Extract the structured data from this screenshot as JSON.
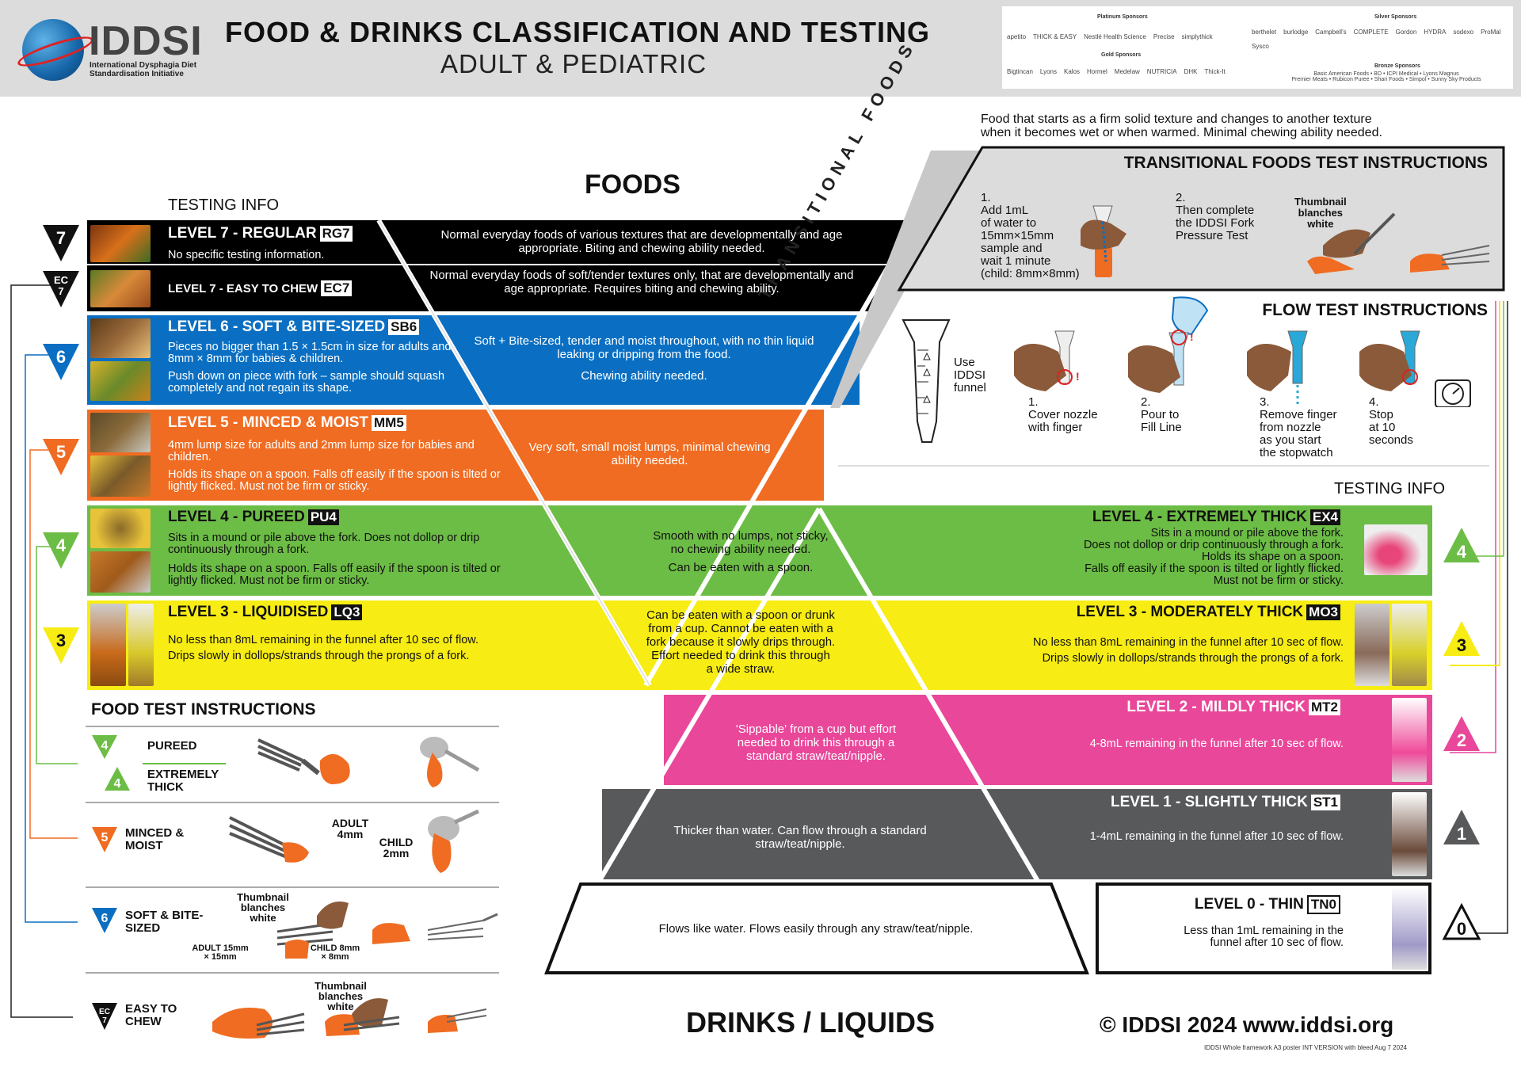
{
  "header": {
    "logo_text": "IDDSI",
    "logo_sub": "International Dysphagia Diet Standardisation Initiative",
    "title": "FOOD & DRINKS CLASSIFICATION AND TESTING",
    "subtitle": "ADULT & PEDIATRIC",
    "sponsors": {
      "platinum_label": "Platinum Sponsors",
      "platinum": [
        "apetito",
        "THICK & EASY",
        "Nestlé Health Science",
        "Precise",
        "simplythick"
      ],
      "gold_label": "Gold Sponsors",
      "gold": [
        "Bigtincan",
        "Lyons",
        "Kalos",
        "Hormel",
        "Medelaw",
        "NUTRICIA",
        "DHK",
        "Thick-It"
      ],
      "silver_label": "Silver Sponsors",
      "silver": [
        "berthelet",
        "burlodge",
        "Campbell's",
        "COMPLETE",
        "Gordon",
        "HYDRA",
        "sodexo",
        "ProMal",
        "Sysco"
      ],
      "bronze_label": "Bronze Sponsors",
      "bronze_text": "Basic American Foods • BD • ICPI Medical • Lyons Magnus",
      "bronze_text2": "Premier Meats • Rubicon Puree • Shari Foods • Simpol • Sunny Sky Products"
    }
  },
  "foods": {
    "heading": "FOODS",
    "testing_info": "TESTING INFO",
    "transitional_label": "TRANSITIONAL FOODS",
    "levels": [
      {
        "title": "LEVEL 7 - REGULAR",
        "code": "RG7",
        "left": "No specific testing information.",
        "center": "Normal everyday foods of various textures that are developmentally and age appropriate. Biting and chewing ability needed.",
        "badge": "7",
        "color": "#000000"
      },
      {
        "title": "LEVEL 7 - EASY TO CHEW",
        "code": "EC7",
        "left": "",
        "center": "Normal everyday foods of soft/tender textures only, that are developmentally and age appropriate. Requires biting and chewing ability.",
        "badge": "EC 7",
        "color": "#000000"
      },
      {
        "title": "LEVEL 6 - SOFT & BITE-SIZED",
        "code": "SB6",
        "left1": "Pieces no bigger than 1.5 × 1.5cm in size for adults and 8mm × 8mm for babies & children.",
        "left2": "Push down on piece with fork – sample should squash completely and not regain its shape.",
        "center1": "Soft + Bite-sized, tender and moist throughout, with no thin liquid leaking or dripping from the food.",
        "center2": "Chewing ability needed.",
        "badge": "6",
        "color": "#0a6fc2"
      },
      {
        "title": "LEVEL 5 - MINCED & MOIST",
        "code": "MM5",
        "left1": "4mm lump size for adults and 2mm lump size for babies and children.",
        "left2": "Holds its shape on a spoon. Falls off easily if the spoon is tilted or lightly flicked. Must not be firm or sticky.",
        "center": "Very soft, small moist lumps, minimal chewing ability needed.",
        "badge": "5",
        "color": "#f06c22"
      },
      {
        "title": "LEVEL 4 - PUREED",
        "code": "PU4",
        "left1": "Sits in a mound or pile above the fork. Does not dollop or drip continuously through a fork.",
        "left2": "Holds its shape on a spoon. Falls off easily if the spoon is tilted or lightly flicked. Must not be firm or sticky.",
        "badge": "4",
        "color": "#6cbd45"
      },
      {
        "title": "LEVEL 3 - LIQUIDISED",
        "code": "LQ3",
        "left1": "No less than 8mL remaining in the funnel after 10 sec of flow.",
        "left2": "Drips slowly in dollops/strands through the prongs of a fork.",
        "badge": "3",
        "color": "#f7ec13"
      }
    ],
    "shared4": {
      "l1": "Smooth with no lumps, not sticky,",
      "l2": "no chewing ability needed.",
      "l3": "Can be eaten with a spoon."
    },
    "shared3": {
      "l1": "Can be eaten with a spoon or drunk",
      "l2": "from a cup. Cannot be eaten with a",
      "l3": "fork because it slowly drips through.",
      "l4": "Effort needed to drink this through",
      "l5": "a wide straw."
    }
  },
  "transitional": {
    "intro1": "Food that starts as a firm solid texture and changes to another texture",
    "intro2": "when it becomes wet or when warmed. Minimal chewing ability needed.",
    "title": "TRANSITIONAL FOODS TEST INSTRUCTIONS",
    "step1": [
      "1.",
      "Add 1mL",
      "of water to",
      "15mm×15mm",
      "sample and",
      "wait 1 minute",
      "(child: 8mm×8mm)"
    ],
    "step2": [
      "2.",
      "Then complete",
      "the IDDSI Fork",
      "Pressure Test"
    ],
    "thumb": [
      "Thumbnail",
      "blanches",
      "white"
    ]
  },
  "flow": {
    "title": "FLOW TEST INSTRUCTIONS",
    "funnel": [
      "Use",
      "IDDSI",
      "funnel"
    ],
    "steps": [
      [
        "1.",
        "Cover nozzle",
        "with finger"
      ],
      [
        "2.",
        "Pour to",
        "Fill Line"
      ],
      [
        "3.",
        "Remove finger",
        "from nozzle",
        "as you start",
        "the stopwatch"
      ],
      [
        "4.",
        "Stop",
        "at 10",
        "seconds"
      ]
    ],
    "testing_info": "TESTING INFO"
  },
  "drinks": {
    "heading": "DRINKS / LIQUIDS",
    "levels": [
      {
        "title": "LEVEL 4 - EXTREMELY THICK",
        "code": "EX4",
        "lines": [
          "Sits in a mound or pile above the fork.",
          "Does not dollop or drip continuously through a fork.",
          "Holds its shape on a spoon.",
          "Falls off easily if the spoon is tilted or lightly flicked.",
          "Must not be firm or sticky."
        ],
        "badge": "4",
        "color": "#6cbd45"
      },
      {
        "title": "LEVEL 3 - MODERATELY THICK",
        "code": "MO3",
        "lines": [
          "No less than 8mL remaining in the funnel after 10 sec of flow.",
          "Drips slowly in dollops/strands through the prongs of a fork."
        ],
        "badge": "3",
        "color": "#f7ec13"
      },
      {
        "title": "LEVEL 2 - MILDLY THICK",
        "code": "MT2",
        "lines": [
          "4-8mL remaining in the funnel after 10 sec of flow."
        ],
        "center": [
          "'Sippable' from a cup but effort",
          "needed to drink this through a",
          "standard straw/teat/nipple."
        ],
        "badge": "2",
        "color": "#e9479a"
      },
      {
        "title": "LEVEL 1 - SLIGHTLY THICK",
        "code": "ST1",
        "lines": [
          "1-4mL remaining in the funnel after 10 sec of flow."
        ],
        "center": [
          "Thicker than water. Can flow through a standard",
          "straw/teat/nipple."
        ],
        "badge": "1",
        "color": "#58595b"
      },
      {
        "title": "LEVEL 0 - THIN",
        "code": "TN0",
        "lines": [
          "Less than 1mL remaining in the",
          "funnel after 10 sec of flow."
        ],
        "center": [
          "Flows like water. Flows easily through any straw/teat/nipple."
        ],
        "badge": "0",
        "color": "#ffffff"
      }
    ]
  },
  "food_test": {
    "title": "FOOD TEST INSTRUCTIONS",
    "rows": [
      {
        "badge": "4",
        "label": "PUREED"
      },
      {
        "badge": "4",
        "label": "EXTREMELY THICK"
      },
      {
        "badge": "5",
        "label": "MINCED & MOIST",
        "adult": "ADULT 4mm",
        "child": "CHILD 2mm"
      },
      {
        "badge": "6",
        "label": "SOFT & BITE-SIZED",
        "thumb": "Thumbnail blanches white",
        "adult": "ADULT 15mm × 15mm",
        "child": "CHILD 8mm × 8mm"
      },
      {
        "badge": "EC 7",
        "label": "EASY TO CHEW",
        "thumb": "Thumbnail blanches white"
      }
    ]
  },
  "footer": {
    "copyright": "© IDDSI 2024  www.iddsi.org",
    "note": "IDDSI Whole framework A3 poster INT VERSION with bleed Aug 7 2024"
  }
}
